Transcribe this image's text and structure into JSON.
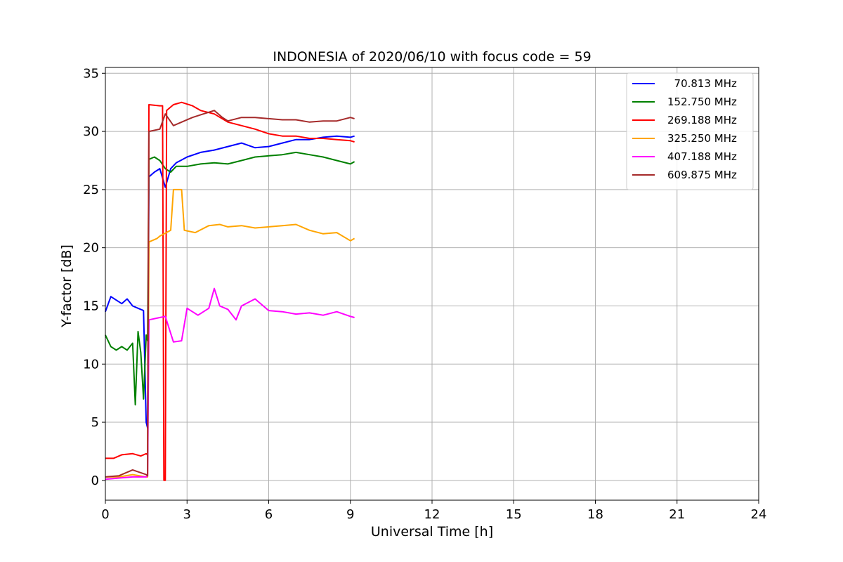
{
  "chart_data": {
    "type": "line",
    "title": "INDONESIA of 2020/06/10 with focus code = 59",
    "xlabel": "Universal Time [h]",
    "ylabel": "Y-factor [dB]",
    "xlim": [
      0,
      24
    ],
    "ylim": [
      -1.7,
      35.5
    ],
    "xticks": [
      0,
      3,
      6,
      9,
      12,
      15,
      18,
      21,
      24
    ],
    "yticks": [
      0,
      5,
      10,
      15,
      20,
      25,
      30,
      35
    ],
    "grid": true,
    "legend_position": "top-right",
    "series": [
      {
        "name": "  70.813 MHz",
        "color": "#0000ff",
        "points": [
          [
            0,
            14.5
          ],
          [
            0.2,
            15.8
          ],
          [
            0.4,
            15.5
          ],
          [
            0.6,
            15.2
          ],
          [
            0.8,
            15.6
          ],
          [
            1.0,
            15.0
          ],
          [
            1.2,
            14.8
          ],
          [
            1.4,
            14.6
          ],
          [
            1.5,
            5.0
          ],
          [
            1.55,
            4.5
          ],
          [
            1.6,
            26.1
          ],
          [
            1.8,
            26.5
          ],
          [
            2.0,
            26.8
          ],
          [
            2.2,
            25.2
          ],
          [
            2.4,
            26.8
          ],
          [
            2.6,
            27.3
          ],
          [
            3.0,
            27.8
          ],
          [
            3.5,
            28.2
          ],
          [
            4.0,
            28.4
          ],
          [
            4.5,
            28.7
          ],
          [
            5.0,
            29.0
          ],
          [
            5.5,
            28.6
          ],
          [
            6.0,
            28.7
          ],
          [
            6.5,
            29.0
          ],
          [
            7.0,
            29.3
          ],
          [
            7.5,
            29.3
          ],
          [
            8.0,
            29.5
          ],
          [
            8.5,
            29.6
          ],
          [
            9.0,
            29.5
          ],
          [
            9.15,
            29.6
          ]
        ]
      },
      {
        "name": "152.750 MHz",
        "color": "#008000",
        "points": [
          [
            0,
            12.5
          ],
          [
            0.2,
            11.5
          ],
          [
            0.4,
            11.2
          ],
          [
            0.6,
            11.5
          ],
          [
            0.8,
            11.2
          ],
          [
            1.0,
            11.8
          ],
          [
            1.1,
            6.5
          ],
          [
            1.2,
            12.8
          ],
          [
            1.3,
            11.0
          ],
          [
            1.4,
            7.0
          ],
          [
            1.5,
            12.5
          ],
          [
            1.55,
            12.0
          ],
          [
            1.6,
            27.6
          ],
          [
            1.8,
            27.8
          ],
          [
            2.0,
            27.5
          ],
          [
            2.2,
            26.8
          ],
          [
            2.4,
            26.5
          ],
          [
            2.6,
            27.0
          ],
          [
            3.0,
            27.0
          ],
          [
            3.5,
            27.2
          ],
          [
            4.0,
            27.3
          ],
          [
            4.5,
            27.2
          ],
          [
            5.0,
            27.5
          ],
          [
            5.5,
            27.8
          ],
          [
            6.0,
            27.9
          ],
          [
            6.5,
            28.0
          ],
          [
            7.0,
            28.2
          ],
          [
            7.5,
            28.0
          ],
          [
            8.0,
            27.8
          ],
          [
            8.5,
            27.5
          ],
          [
            9.0,
            27.2
          ],
          [
            9.15,
            27.4
          ]
        ]
      },
      {
        "name": "269.188 MHz",
        "color": "#ff0000",
        "points": [
          [
            0,
            1.9
          ],
          [
            0.3,
            1.9
          ],
          [
            0.6,
            2.2
          ],
          [
            1.0,
            2.3
          ],
          [
            1.3,
            2.1
          ],
          [
            1.5,
            2.3
          ],
          [
            1.55,
            2.2
          ],
          [
            1.6,
            32.3
          ],
          [
            2.0,
            32.2
          ],
          [
            2.1,
            32.2
          ],
          [
            2.15,
            0.0
          ],
          [
            2.2,
            0.0
          ],
          [
            2.25,
            31.8
          ],
          [
            2.5,
            32.3
          ],
          [
            2.8,
            32.5
          ],
          [
            3.2,
            32.2
          ],
          [
            3.5,
            31.8
          ],
          [
            4.0,
            31.5
          ],
          [
            4.5,
            30.8
          ],
          [
            5.0,
            30.5
          ],
          [
            5.5,
            30.2
          ],
          [
            6.0,
            29.8
          ],
          [
            6.5,
            29.6
          ],
          [
            7.0,
            29.6
          ],
          [
            7.5,
            29.4
          ],
          [
            8.0,
            29.4
          ],
          [
            8.5,
            29.3
          ],
          [
            9.0,
            29.2
          ],
          [
            9.15,
            29.1
          ]
        ]
      },
      {
        "name": "325.250 MHz",
        "color": "#ffa500",
        "points": [
          [
            0,
            0.3
          ],
          [
            0.5,
            0.3
          ],
          [
            1.0,
            0.5
          ],
          [
            1.5,
            0.3
          ],
          [
            1.55,
            0.3
          ],
          [
            1.6,
            20.5
          ],
          [
            1.9,
            20.8
          ],
          [
            2.0,
            21.0
          ],
          [
            2.4,
            21.5
          ],
          [
            2.5,
            25.0
          ],
          [
            2.8,
            25.0
          ],
          [
            2.9,
            21.5
          ],
          [
            3.3,
            21.3
          ],
          [
            3.8,
            21.9
          ],
          [
            4.2,
            22.0
          ],
          [
            4.5,
            21.8
          ],
          [
            5.0,
            21.9
          ],
          [
            5.5,
            21.7
          ],
          [
            6.0,
            21.8
          ],
          [
            6.5,
            21.9
          ],
          [
            7.0,
            22.0
          ],
          [
            7.5,
            21.5
          ],
          [
            8.0,
            21.2
          ],
          [
            8.5,
            21.3
          ],
          [
            9.0,
            20.6
          ],
          [
            9.15,
            20.8
          ]
        ]
      },
      {
        "name": "407.188 MHz",
        "color": "#ff00ff",
        "points": [
          [
            0,
            0.1
          ],
          [
            0.5,
            0.2
          ],
          [
            1.0,
            0.3
          ],
          [
            1.5,
            0.3
          ],
          [
            1.55,
            0.4
          ],
          [
            1.6,
            13.8
          ],
          [
            2.0,
            14.0
          ],
          [
            2.2,
            14.1
          ],
          [
            2.5,
            11.9
          ],
          [
            2.8,
            12.0
          ],
          [
            3.0,
            14.8
          ],
          [
            3.4,
            14.2
          ],
          [
            3.8,
            14.8
          ],
          [
            4.0,
            16.5
          ],
          [
            4.2,
            15.0
          ],
          [
            4.5,
            14.7
          ],
          [
            4.8,
            13.8
          ],
          [
            5.0,
            15.0
          ],
          [
            5.5,
            15.6
          ],
          [
            6.0,
            14.6
          ],
          [
            6.5,
            14.5
          ],
          [
            7.0,
            14.3
          ],
          [
            7.5,
            14.4
          ],
          [
            8.0,
            14.2
          ],
          [
            8.5,
            14.5
          ],
          [
            9.0,
            14.1
          ],
          [
            9.15,
            14.0
          ]
        ]
      },
      {
        "name": "609.875 MHz",
        "color": "#a52a2a",
        "points": [
          [
            0,
            0.3
          ],
          [
            0.5,
            0.4
          ],
          [
            1.0,
            0.9
          ],
          [
            1.5,
            0.5
          ],
          [
            1.55,
            0.4
          ],
          [
            1.6,
            30.0
          ],
          [
            2.0,
            30.2
          ],
          [
            2.2,
            31.5
          ],
          [
            2.5,
            30.5
          ],
          [
            2.8,
            30.8
          ],
          [
            3.2,
            31.2
          ],
          [
            3.6,
            31.5
          ],
          [
            4.0,
            31.8
          ],
          [
            4.3,
            31.2
          ],
          [
            4.5,
            30.9
          ],
          [
            5.0,
            31.2
          ],
          [
            5.5,
            31.2
          ],
          [
            6.0,
            31.1
          ],
          [
            6.5,
            31.0
          ],
          [
            7.0,
            31.0
          ],
          [
            7.5,
            30.8
          ],
          [
            8.0,
            30.9
          ],
          [
            8.5,
            30.9
          ],
          [
            9.0,
            31.2
          ],
          [
            9.15,
            31.1
          ]
        ]
      }
    ]
  }
}
